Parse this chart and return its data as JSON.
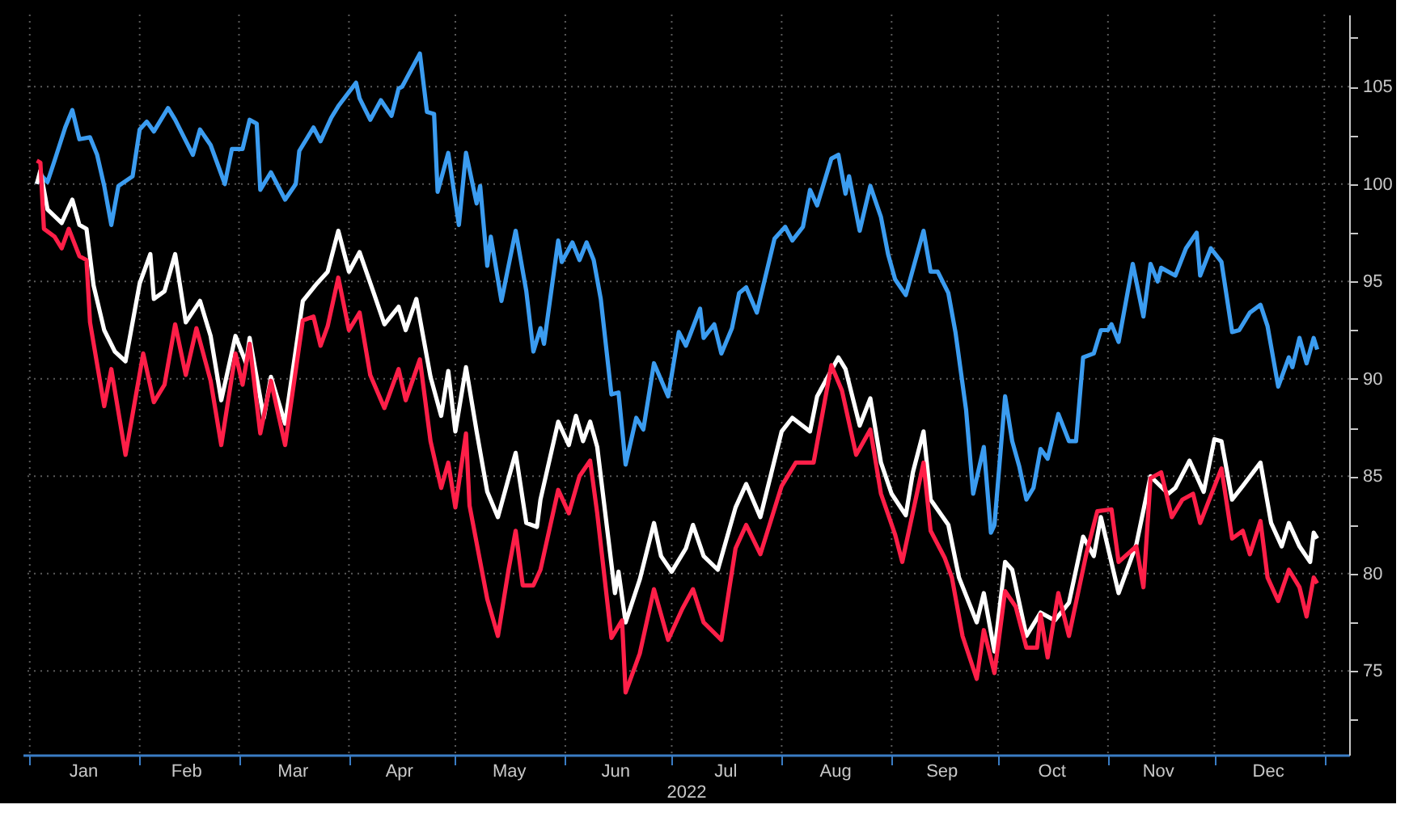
{
  "chart_data": {
    "type": "line",
    "xlabel": "2022",
    "xlim": [
      "2021-12-30",
      "2023-01-08"
    ],
    "xticks": [
      {
        "value": "2022-01-01",
        "label": null
      },
      {
        "value": "2022-01-16",
        "label": "Jan"
      },
      {
        "value": "2022-02-01",
        "label": null
      },
      {
        "value": "2022-02-14",
        "label": "Feb"
      },
      {
        "value": "2022-03-01",
        "label": null
      },
      {
        "value": "2022-03-16",
        "label": "Mar"
      },
      {
        "value": "2022-04-01",
        "label": null
      },
      {
        "value": "2022-04-15",
        "label": "Apr"
      },
      {
        "value": "2022-05-01",
        "label": null
      },
      {
        "value": "2022-05-16",
        "label": "May"
      },
      {
        "value": "2022-06-01",
        "label": null
      },
      {
        "value": "2022-06-15",
        "label": "Jun"
      },
      {
        "value": "2022-07-01",
        "label": null
      },
      {
        "value": "2022-07-16",
        "label": "Jul"
      },
      {
        "value": "2022-08-01",
        "label": null
      },
      {
        "value": "2022-08-16",
        "label": "Aug"
      },
      {
        "value": "2022-09-01",
        "label": null
      },
      {
        "value": "2022-09-15",
        "label": "Sep"
      },
      {
        "value": "2022-10-01",
        "label": null
      },
      {
        "value": "2022-10-16",
        "label": "Oct"
      },
      {
        "value": "2022-11-01",
        "label": null
      },
      {
        "value": "2022-11-15",
        "label": "Nov"
      },
      {
        "value": "2022-12-01",
        "label": null
      },
      {
        "value": "2022-12-16",
        "label": "Dec"
      },
      {
        "value": "2023-01-01",
        "label": null
      }
    ],
    "ylim": [
      70.7,
      108.7
    ],
    "yticks": [
      {
        "value": 72.5,
        "label": null
      },
      75,
      {
        "value": 77.5,
        "label": null
      },
      80,
      {
        "value": 82.5,
        "label": null
      },
      85,
      {
        "value": 87.5,
        "label": null
      },
      90,
      {
        "value": 92.5,
        "label": null
      },
      95,
      {
        "value": 97.5,
        "label": null
      },
      100,
      {
        "value": 102.5,
        "label": null
      },
      105,
      {
        "value": 107.5,
        "label": null
      }
    ],
    "grid": true,
    "series": [
      {
        "color": "#3b9cf0",
        "x": [
          "2022-01-03",
          "2022-01-04",
          "2022-01-06",
          "2022-01-08",
          "2022-01-11",
          "2022-01-13",
          "2022-01-15",
          "2022-01-18",
          "2022-01-20",
          "2022-01-22",
          "2022-01-24",
          "2022-01-26",
          "2022-01-30",
          "2022-02-01",
          "2022-02-03",
          "2022-02-05",
          "2022-02-09",
          "2022-02-11",
          "2022-02-16",
          "2022-02-18",
          "2022-02-21",
          "2022-02-25",
          "2022-02-27",
          "2022-03-02",
          "2022-03-04",
          "2022-03-06",
          "2022-03-07",
          "2022-03-10",
          "2022-03-14",
          "2022-03-17",
          "2022-03-18",
          "2022-03-22",
          "2022-03-24",
          "2022-03-27",
          "2022-03-29",
          "2022-04-03",
          "2022-04-04",
          "2022-04-07",
          "2022-04-10",
          "2022-04-13",
          "2022-04-15",
          "2022-04-16",
          "2022-04-21",
          "2022-04-23",
          "2022-04-25",
          "2022-04-26",
          "2022-04-29",
          "2022-05-02",
          "2022-05-04",
          "2022-05-07",
          "2022-05-08",
          "2022-05-10",
          "2022-05-11",
          "2022-05-14",
          "2022-05-18",
          "2022-05-21",
          "2022-05-23",
          "2022-05-25",
          "2022-05-26",
          "2022-05-30",
          "2022-05-31",
          "2022-06-03",
          "2022-06-05",
          "2022-06-07",
          "2022-06-09",
          "2022-06-11",
          "2022-06-14",
          "2022-06-16",
          "2022-06-18",
          "2022-06-21",
          "2022-06-23",
          "2022-06-26",
          "2022-06-30",
          "2022-07-03",
          "2022-07-05",
          "2022-07-09",
          "2022-07-10",
          "2022-07-13",
          "2022-07-15",
          "2022-07-18",
          "2022-07-20",
          "2022-07-22",
          "2022-07-25",
          "2022-07-30",
          "2022-08-02",
          "2022-08-04",
          "2022-08-07",
          "2022-08-09",
          "2022-08-11",
          "2022-08-15",
          "2022-08-17",
          "2022-08-19",
          "2022-08-20",
          "2022-08-23",
          "2022-08-26",
          "2022-08-29",
          "2022-08-31",
          "2022-09-02",
          "2022-09-05",
          "2022-09-10",
          "2022-09-12",
          "2022-09-14",
          "2022-09-17",
          "2022-09-19",
          "2022-09-22",
          "2022-09-24",
          "2022-09-27",
          "2022-09-29",
          "2022-09-30",
          "2022-10-03",
          "2022-10-05",
          "2022-10-07",
          "2022-10-09",
          "2022-10-11",
          "2022-10-13",
          "2022-10-15",
          "2022-10-18",
          "2022-10-21",
          "2022-10-23",
          "2022-10-25",
          "2022-10-28",
          "2022-10-30",
          "2022-11-01",
          "2022-11-02",
          "2022-11-04",
          "2022-11-08",
          "2022-11-11",
          "2022-11-13",
          "2022-11-15",
          "2022-11-16",
          "2022-11-20",
          "2022-11-23",
          "2022-11-26",
          "2022-11-27",
          "2022-11-30",
          "2022-12-03",
          "2022-12-06",
          "2022-12-08",
          "2022-12-11",
          "2022-12-14",
          "2022-12-16",
          "2022-12-19",
          "2022-12-22",
          "2022-12-23",
          "2022-12-25",
          "2022-12-27",
          "2022-12-29",
          "2022-12-30"
        ],
        "values": [
          100.0,
          100.5,
          100.1,
          101.2,
          102.9,
          103.8,
          102.3,
          102.4,
          101.5,
          99.9,
          97.9,
          99.9,
          100.4,
          102.8,
          103.2,
          102.7,
          103.9,
          103.3,
          101.5,
          102.8,
          102.0,
          100.0,
          101.8,
          101.8,
          103.3,
          103.1,
          99.7,
          100.6,
          99.2,
          100.0,
          101.7,
          102.9,
          102.2,
          103.4,
          104.0,
          105.2,
          104.4,
          103.3,
          104.3,
          103.5,
          104.9,
          105.0,
          106.7,
          103.7,
          103.6,
          99.6,
          101.6,
          97.9,
          101.6,
          99.0,
          99.9,
          95.8,
          97.3,
          94.0,
          97.6,
          94.5,
          91.4,
          92.6,
          91.8,
          97.1,
          96.0,
          97.0,
          96.1,
          97.0,
          96.1,
          94.1,
          89.2,
          89.3,
          85.6,
          88.0,
          87.4,
          90.8,
          89.1,
          92.4,
          91.7,
          93.6,
          92.1,
          92.8,
          91.3,
          92.6,
          94.4,
          94.7,
          93.4,
          97.2,
          97.8,
          97.1,
          97.8,
          99.7,
          98.9,
          101.3,
          101.5,
          99.5,
          100.4,
          97.6,
          99.9,
          98.3,
          96.4,
          95.1,
          94.3,
          97.6,
          95.5,
          95.5,
          94.4,
          92.4,
          88.4,
          84.1,
          86.5,
          82.1,
          82.5,
          89.1,
          86.8,
          85.5,
          83.8,
          84.4,
          86.4,
          85.9,
          88.2,
          86.8,
          86.8,
          91.1,
          91.3,
          92.5,
          92.5,
          92.8,
          91.9,
          95.9,
          93.2,
          95.9,
          95.0,
          95.7,
          95.3,
          96.7,
          97.5,
          95.3,
          96.7,
          96.0,
          92.4,
          92.5,
          93.4,
          93.8,
          92.7,
          89.6,
          91.1,
          90.6,
          92.1,
          90.8,
          92.1,
          91.5
        ]
      },
      {
        "color": "#ffffff",
        "x": [
          "2022-01-03",
          "2022-01-04",
          "2022-01-06",
          "2022-01-10",
          "2022-01-13",
          "2022-01-15",
          "2022-01-17",
          "2022-01-19",
          "2022-01-22",
          "2022-01-25",
          "2022-01-28",
          "2022-02-01",
          "2022-02-04",
          "2022-02-05",
          "2022-02-08",
          "2022-02-11",
          "2022-02-14",
          "2022-02-18",
          "2022-02-21",
          "2022-02-24",
          "2022-02-28",
          "2022-03-03",
          "2022-03-04",
          "2022-03-08",
          "2022-03-10",
          "2022-03-14",
          "2022-03-19",
          "2022-03-23",
          "2022-03-26",
          "2022-03-29",
          "2022-04-01",
          "2022-04-04",
          "2022-04-08",
          "2022-04-11",
          "2022-04-15",
          "2022-04-17",
          "2022-04-20",
          "2022-04-24",
          "2022-04-27",
          "2022-04-29",
          "2022-05-01",
          "2022-05-04",
          "2022-05-07",
          "2022-05-10",
          "2022-05-13",
          "2022-05-16",
          "2022-05-18",
          "2022-05-21",
          "2022-05-24",
          "2022-05-25",
          "2022-05-30",
          "2022-06-02",
          "2022-06-04",
          "2022-06-06",
          "2022-06-08",
          "2022-06-10",
          "2022-06-15",
          "2022-06-16",
          "2022-06-18",
          "2022-06-22",
          "2022-06-26",
          "2022-06-28",
          "2022-07-01",
          "2022-07-05",
          "2022-07-07",
          "2022-07-10",
          "2022-07-14",
          "2022-07-19",
          "2022-07-22",
          "2022-07-26",
          "2022-08-01",
          "2022-08-04",
          "2022-08-09",
          "2022-08-11",
          "2022-08-17",
          "2022-08-19",
          "2022-08-23",
          "2022-08-26",
          "2022-08-29",
          "2022-09-01",
          "2022-09-05",
          "2022-09-07",
          "2022-09-10",
          "2022-09-12",
          "2022-09-17",
          "2022-09-20",
          "2022-09-25",
          "2022-09-27",
          "2022-09-30",
          "2022-10-03",
          "2022-10-05",
          "2022-10-09",
          "2022-10-13",
          "2022-10-17",
          "2022-10-21",
          "2022-10-25",
          "2022-10-28",
          "2022-10-30",
          "2022-11-04",
          "2022-11-09",
          "2022-11-13",
          "2022-11-18",
          "2022-11-20",
          "2022-11-24",
          "2022-11-28",
          "2022-12-01",
          "2022-12-03",
          "2022-12-06",
          "2022-12-09",
          "2022-12-14",
          "2022-12-17",
          "2022-12-20",
          "2022-12-22",
          "2022-12-25",
          "2022-12-28",
          "2022-12-29",
          "2022-12-30"
        ],
        "values": [
          100.0,
          100.7,
          98.7,
          98.0,
          99.2,
          97.9,
          97.7,
          94.8,
          92.5,
          91.4,
          90.9,
          94.9,
          96.4,
          94.1,
          94.5,
          96.4,
          92.9,
          94.0,
          92.2,
          88.9,
          92.2,
          90.8,
          92.1,
          88.0,
          90.1,
          87.7,
          94.0,
          94.9,
          95.5,
          97.6,
          95.5,
          96.5,
          94.4,
          92.8,
          93.7,
          92.5,
          94.1,
          90.1,
          88.1,
          90.4,
          87.3,
          90.6,
          87.3,
          84.2,
          82.9,
          84.9,
          86.2,
          82.6,
          82.4,
          83.8,
          87.8,
          86.6,
          88.1,
          86.8,
          87.8,
          86.5,
          79.0,
          80.1,
          77.5,
          79.7,
          82.6,
          80.9,
          80.1,
          81.3,
          82.5,
          80.9,
          80.2,
          83.4,
          84.6,
          82.9,
          87.3,
          88.0,
          87.3,
          89.1,
          91.1,
          90.5,
          87.6,
          89.0,
          85.7,
          84.1,
          83.0,
          85.2,
          87.3,
          83.8,
          82.5,
          79.8,
          77.5,
          79.0,
          76.0,
          80.6,
          80.2,
          76.8,
          78.0,
          77.6,
          78.5,
          81.9,
          80.9,
          82.9,
          79.0,
          81.5,
          85.0,
          84.1,
          84.4,
          85.8,
          84.2,
          86.9,
          86.8,
          83.8,
          84.5,
          85.7,
          82.6,
          81.4,
          82.6,
          81.4,
          80.6,
          82.1,
          81.8
        ]
      },
      {
        "color": "#ff1f48",
        "x": [
          "2022-01-03",
          "2022-01-04",
          "2022-01-05",
          "2022-01-08",
          "2022-01-10",
          "2022-01-12",
          "2022-01-15",
          "2022-01-17",
          "2022-01-18",
          "2022-01-22",
          "2022-01-24",
          "2022-01-28",
          "2022-02-02",
          "2022-02-05",
          "2022-02-08",
          "2022-02-11",
          "2022-02-14",
          "2022-02-17",
          "2022-02-21",
          "2022-02-24",
          "2022-02-28",
          "2022-03-02",
          "2022-03-04",
          "2022-03-07",
          "2022-03-10",
          "2022-03-14",
          "2022-03-19",
          "2022-03-22",
          "2022-03-24",
          "2022-03-26",
          "2022-03-29",
          "2022-04-01",
          "2022-04-04",
          "2022-04-07",
          "2022-04-11",
          "2022-04-15",
          "2022-04-17",
          "2022-04-21",
          "2022-04-24",
          "2022-04-27",
          "2022-04-29",
          "2022-05-01",
          "2022-05-04",
          "2022-05-05",
          "2022-05-10",
          "2022-05-13",
          "2022-05-16",
          "2022-05-18",
          "2022-05-20",
          "2022-05-23",
          "2022-05-25",
          "2022-05-30",
          "2022-06-02",
          "2022-06-05",
          "2022-06-08",
          "2022-06-10",
          "2022-06-14",
          "2022-06-17",
          "2022-06-18",
          "2022-06-22",
          "2022-06-26",
          "2022-06-30",
          "2022-07-04",
          "2022-07-07",
          "2022-07-10",
          "2022-07-15",
          "2022-07-19",
          "2022-07-22",
          "2022-07-26",
          "2022-08-01",
          "2022-08-05",
          "2022-08-10",
          "2022-08-15",
          "2022-08-18",
          "2022-08-22",
          "2022-08-26",
          "2022-08-29",
          "2022-09-02",
          "2022-09-04",
          "2022-09-10",
          "2022-09-12",
          "2022-09-16",
          "2022-09-18",
          "2022-09-21",
          "2022-09-25",
          "2022-09-27",
          "2022-09-30",
          "2022-10-03",
          "2022-10-06",
          "2022-10-09",
          "2022-10-12",
          "2022-10-13",
          "2022-10-15",
          "2022-10-18",
          "2022-10-21",
          "2022-10-26",
          "2022-10-29",
          "2022-11-02",
          "2022-11-04",
          "2022-11-09",
          "2022-11-11",
          "2022-11-13",
          "2022-11-16",
          "2022-11-19",
          "2022-11-22",
          "2022-11-25",
          "2022-11-27",
          "2022-12-03",
          "2022-12-06",
          "2022-12-09",
          "2022-12-11",
          "2022-12-14",
          "2022-12-16",
          "2022-12-19",
          "2022-12-22",
          "2022-12-25",
          "2022-12-27",
          "2022-12-29",
          "2022-12-30"
        ],
        "values": [
          101.2,
          101.1,
          97.7,
          97.3,
          96.7,
          97.7,
          96.3,
          96.1,
          92.9,
          88.6,
          90.5,
          86.1,
          91.3,
          88.8,
          89.7,
          92.8,
          90.2,
          92.6,
          89.9,
          86.6,
          91.3,
          89.7,
          91.8,
          87.2,
          89.9,
          86.6,
          93.0,
          93.2,
          91.7,
          92.7,
          95.2,
          92.5,
          93.4,
          90.2,
          88.5,
          90.5,
          88.9,
          91.0,
          86.8,
          84.4,
          85.7,
          83.4,
          87.2,
          83.5,
          78.7,
          76.8,
          80.2,
          82.2,
          79.4,
          79.4,
          80.2,
          84.3,
          83.1,
          85.0,
          85.8,
          83.1,
          76.7,
          77.6,
          73.9,
          75.9,
          79.2,
          76.6,
          78.2,
          79.2,
          77.5,
          76.6,
          81.3,
          82.5,
          81.0,
          84.5,
          85.7,
          85.7,
          90.7,
          89.4,
          86.1,
          87.4,
          84.1,
          82.0,
          80.6,
          85.7,
          82.2,
          80.8,
          79.8,
          76.8,
          74.6,
          77.1,
          74.9,
          79.1,
          78.3,
          76.2,
          76.2,
          77.9,
          75.7,
          79.0,
          76.8,
          81.1,
          83.2,
          83.3,
          80.6,
          81.4,
          79.3,
          84.9,
          85.2,
          82.9,
          83.8,
          84.1,
          82.6,
          85.4,
          81.8,
          82.2,
          81.0,
          82.7,
          79.8,
          78.6,
          80.2,
          79.3,
          77.8,
          79.8,
          79.5
        ]
      }
    ]
  }
}
